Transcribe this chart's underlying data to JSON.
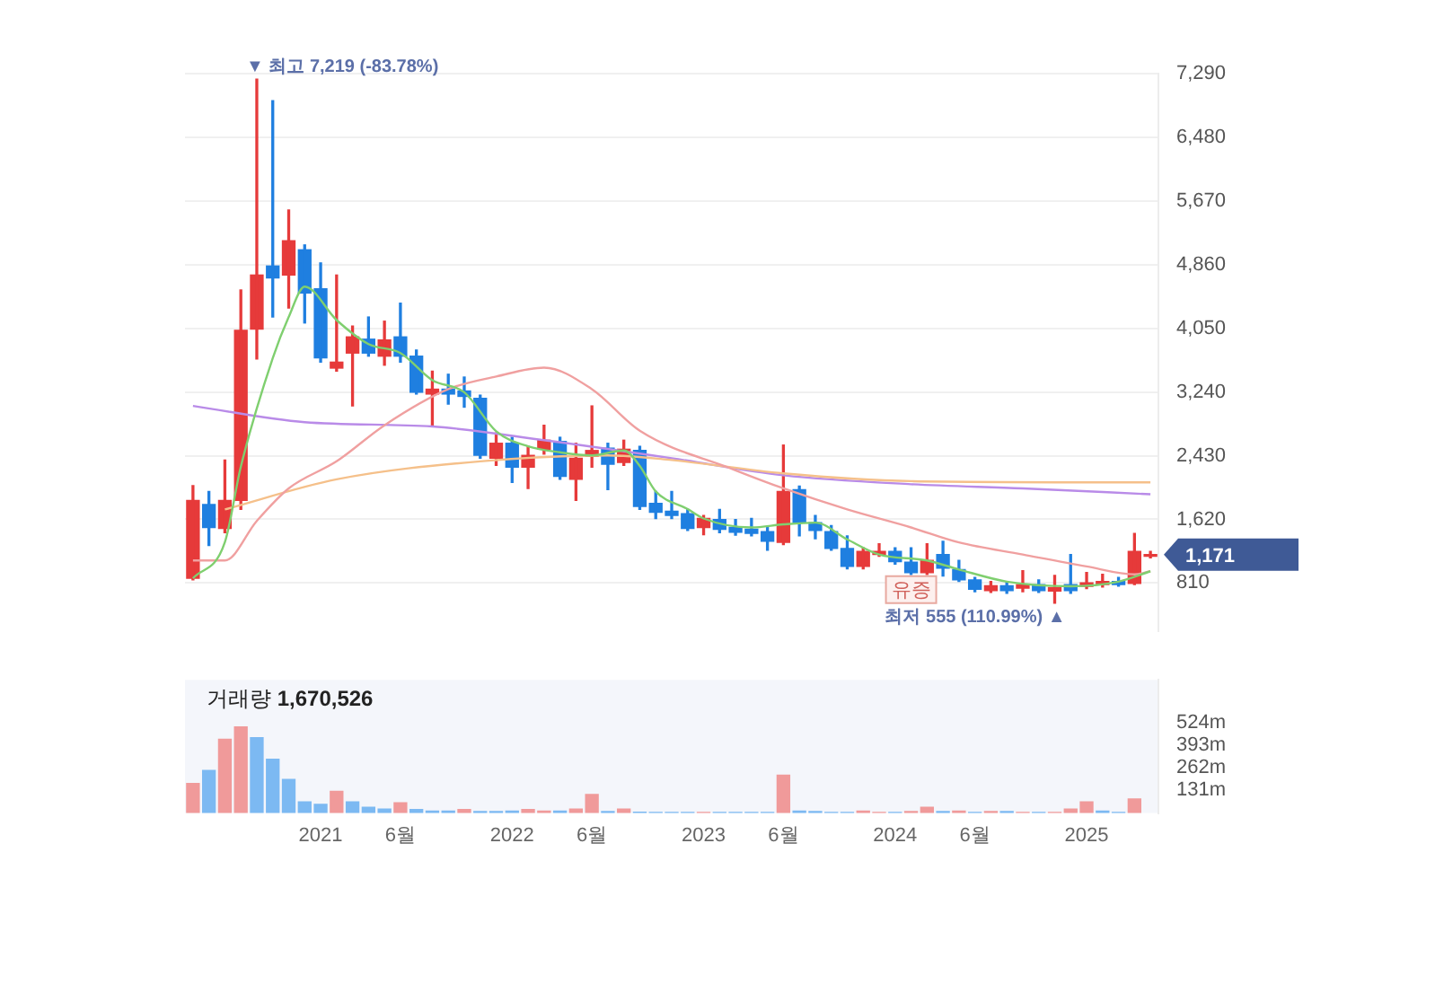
{
  "chart_data": [
    {
      "type": "candlestick",
      "x": [
        "2020-05",
        "2020-06",
        "2020-07",
        "2020-08",
        "2020-09",
        "2020-10",
        "2020-11",
        "2020-12",
        "2021-01",
        "2021-02",
        "2021-03",
        "2021-04",
        "2021-05",
        "2021-06",
        "2021-07",
        "2021-08",
        "2021-09",
        "2021-10",
        "2021-11",
        "2021-12",
        "2022-01",
        "2022-02",
        "2022-03",
        "2022-04",
        "2022-05",
        "2022-06",
        "2022-07",
        "2022-08",
        "2022-09",
        "2022-10",
        "2022-11",
        "2022-12",
        "2023-01",
        "2023-02",
        "2023-03",
        "2023-04",
        "2023-05",
        "2023-06",
        "2023-07",
        "2023-08",
        "2023-09",
        "2023-10",
        "2023-11",
        "2023-12",
        "2024-01",
        "2024-02",
        "2024-03",
        "2024-04",
        "2024-05",
        "2024-06",
        "2024-07",
        "2024-08",
        "2024-09",
        "2024-10",
        "2024-11",
        "2024-12",
        "2025-01",
        "2025-02",
        "2025-03",
        "2025-04",
        "2025-05"
      ],
      "ohlc": [
        [
          870,
          2050,
          850,
          1860
        ],
        [
          1808,
          1975,
          1287,
          1517
        ],
        [
          1503,
          2375,
          1450,
          1861
        ],
        [
          1861,
          4538,
          1746,
          4026
        ],
        [
          4040,
          7219,
          3659,
          4728
        ],
        [
          4843,
          6946,
          4194,
          4691
        ],
        [
          4728,
          5554,
          4308,
          5164
        ],
        [
          5049,
          5111,
          4118,
          4499
        ],
        [
          4554,
          4882,
          3620,
          3673
        ],
        [
          3544,
          4728,
          3505,
          3620
        ],
        [
          3735,
          4079,
          3063,
          3941
        ],
        [
          3912,
          4194,
          3696,
          3735
        ],
        [
          3696,
          4141,
          3581,
          3902
        ],
        [
          3941,
          4370,
          3620,
          3696
        ],
        [
          3696,
          3774,
          3214,
          3237
        ],
        [
          3214,
          3505,
          2801,
          3276
        ],
        [
          3276,
          3466,
          3086,
          3214
        ],
        [
          3253,
          3430,
          3047,
          3184
        ],
        [
          3161,
          3200,
          2397,
          2434
        ],
        [
          2397,
          2719,
          2306,
          2588
        ],
        [
          2588,
          2664,
          2090,
          2283
        ],
        [
          2283,
          2549,
          2014,
          2434
        ],
        [
          2512,
          2817,
          2450,
          2627
        ],
        [
          2611,
          2664,
          2129,
          2168
        ],
        [
          2129,
          2588,
          1861,
          2397
        ],
        [
          2420,
          3063,
          2283,
          2496
        ],
        [
          2526,
          2588,
          1998,
          2320
        ],
        [
          2343,
          2627,
          2306,
          2512
        ],
        [
          2496,
          2549,
          1746,
          1785
        ],
        [
          1824,
          1975,
          1631,
          1709
        ],
        [
          1723,
          1975,
          1631,
          1670
        ],
        [
          1693,
          1746,
          1480,
          1503
        ],
        [
          1517,
          1670,
          1425,
          1631
        ],
        [
          1617,
          1746,
          1450,
          1494
        ],
        [
          1517,
          1617,
          1420,
          1457
        ],
        [
          1494,
          1631,
          1410,
          1441
        ],
        [
          1464,
          1517,
          1227,
          1342
        ],
        [
          1326,
          2565,
          1300,
          1975
        ],
        [
          1998,
          2044,
          1410,
          1578
        ],
        [
          1578,
          1670,
          1372,
          1480
        ],
        [
          1464,
          1540,
          1227,
          1250
        ],
        [
          1250,
          1410,
          990,
          1021
        ],
        [
          1021,
          1257,
          990,
          1211
        ],
        [
          1172,
          1310,
          1150,
          1211
        ],
        [
          1211,
          1257,
          1050,
          1081
        ],
        [
          1074,
          1257,
          920,
          943
        ],
        [
          943,
          1310,
          920,
          1097
        ],
        [
          1172,
          1341,
          900,
          998
        ],
        [
          982,
          1097,
          830,
          851
        ],
        [
          851,
          880,
          700,
          730
        ],
        [
          714,
          830,
          690,
          776
        ],
        [
          776,
          830,
          680,
          714
        ],
        [
          746,
          968,
          700,
          790
        ],
        [
          790,
          850,
          690,
          714
        ],
        [
          707,
          906,
          555,
          753
        ],
        [
          790,
          1172,
          680,
          714
        ],
        [
          768,
          943,
          740,
          814
        ],
        [
          790,
          920,
          760,
          830
        ],
        [
          830,
          880,
          770,
          790
        ],
        [
          806,
          1441,
          790,
          1211
        ],
        [
          1150,
          1211,
          1130,
          1171
        ]
      ],
      "colors": [
        "#e63a3a",
        "#1f7fe0",
        "#e63a3a",
        "#e63a3a",
        "#e63a3a",
        "#1f7fe0",
        "#e63a3a",
        "#1f7fe0",
        "#1f7fe0",
        "#e63a3a",
        "#e63a3a",
        "#1f7fe0",
        "#e63a3a",
        "#1f7fe0",
        "#1f7fe0",
        "#e63a3a",
        "#1f7fe0",
        "#1f7fe0",
        "#1f7fe0",
        "#e63a3a",
        "#1f7fe0",
        "#e63a3a",
        "#e63a3a",
        "#1f7fe0",
        "#e63a3a",
        "#e63a3a",
        "#1f7fe0",
        "#e63a3a",
        "#1f7fe0",
        "#1f7fe0",
        "#1f7fe0",
        "#1f7fe0",
        "#e63a3a",
        "#1f7fe0",
        "#1f7fe0",
        "#1f7fe0",
        "#1f7fe0",
        "#e63a3a",
        "#1f7fe0",
        "#1f7fe0",
        "#1f7fe0",
        "#1f7fe0",
        "#e63a3a",
        "#e63a3a",
        "#1f7fe0",
        "#1f7fe0",
        "#e63a3a",
        "#1f7fe0",
        "#1f7fe0",
        "#1f7fe0",
        "#e63a3a",
        "#1f7fe0",
        "#e63a3a",
        "#1f7fe0",
        "#e63a3a",
        "#1f7fe0",
        "#e63a3a",
        "#e63a3a",
        "#1f7fe0",
        "#e63a3a",
        "#e63a3a"
      ],
      "series": [
        {
          "type": "line",
          "color": "#7fcf6f",
          "x": [
            "2020-05",
            "2020-07",
            "2020-08",
            "2020-10",
            "2020-11",
            "2020-12",
            "2021-02",
            "2021-04",
            "2021-06",
            "2021-08",
            "2021-10",
            "2021-12",
            "2022-02",
            "2022-04",
            "2022-06",
            "2022-08",
            "2022-09",
            "2022-10",
            "2022-12",
            "2023-01",
            "2023-04",
            "2023-06",
            "2023-08",
            "2023-10",
            "2023-12",
            "2024-03",
            "2024-05",
            "2024-08",
            "2024-12",
            "2025-03",
            "2025-05"
          ],
          "values": [
            870,
            1330,
            2290,
            3670,
            4194,
            4580,
            4155,
            3850,
            3735,
            3390,
            3237,
            2741,
            2549,
            2473,
            2434,
            2496,
            2300,
            1975,
            1750,
            1631,
            1517,
            1556,
            1578,
            1365,
            1172,
            1097,
            982,
            828,
            769,
            828,
            960
          ]
        },
        {
          "type": "line",
          "color": "#f0a0a0",
          "x": [
            "2020-05",
            "2020-07",
            "2020-09",
            "2020-11",
            "2021-02",
            "2021-05",
            "2021-09",
            "2021-12",
            "2022-03",
            "2022-06",
            "2022-09",
            "2023-03",
            "2023-06",
            "2023-10",
            "2024-02",
            "2024-05",
            "2024-09",
            "2025-01",
            "2025-04",
            "2025-05"
          ],
          "values": [
            1097,
            1097,
            1600,
            2014,
            2358,
            2817,
            3276,
            3437,
            3550,
            3276,
            2748,
            2244,
            2014,
            1746,
            1517,
            1326,
            1172,
            1021,
            920,
            960
          ]
        },
        {
          "type": "line",
          "color": "#f5c08a",
          "x": [
            "2020-07",
            "2021-02",
            "2021-11",
            "2022-07",
            "2022-11",
            "2023-06",
            "2024-02",
            "2025-05"
          ],
          "values": [
            1746,
            2129,
            2358,
            2434,
            2375,
            2205,
            2106,
            2090
          ]
        },
        {
          "type": "line",
          "color": "#b98be8",
          "x": [
            "2020-05",
            "2020-12",
            "2021-08",
            "2022-03",
            "2022-11",
            "2023-06",
            "2024-02",
            "2024-09",
            "2025-05"
          ],
          "values": [
            3063,
            2856,
            2801,
            2627,
            2397,
            2180,
            2067,
            2014,
            1939
          ]
        }
      ],
      "xlim": [
        "2020-04-16",
        "2025-05-16"
      ],
      "ylim": [
        200,
        7290
      ],
      "yticks": [
        {
          "value": 810,
          "label": "810"
        },
        {
          "value": 1620,
          "label": "1,620"
        },
        {
          "value": 2430,
          "label": "2,430"
        },
        {
          "value": 3240,
          "label": "3,240"
        },
        {
          "value": 4050,
          "label": "4,050"
        },
        {
          "value": 4860,
          "label": "4,860"
        },
        {
          "value": 5670,
          "label": "5,670"
        },
        {
          "value": 6480,
          "label": "6,480"
        },
        {
          "value": 7290,
          "label": "7,290"
        }
      ],
      "tick_labels": "y",
      "grid": "y",
      "legend": false,
      "annotations": [
        {
          "text": "▼ 최고 7,219 (-83.78%)",
          "x": "2020-09",
          "y": 7219
        },
        {
          "text": "최저 555 (110.99%) ▲",
          "x": "2024-11",
          "y": 555
        },
        {
          "text": "유증",
          "x": "2024-02",
          "y": 943
        },
        {
          "text": "1,171",
          "x": "2025-05",
          "y": 1171
        }
      ]
    },
    {
      "type": "bar",
      "x": [
        "2020-05",
        "2020-06",
        "2020-07",
        "2020-08",
        "2020-09",
        "2020-10",
        "2020-11",
        "2020-12",
        "2021-01",
        "2021-02",
        "2021-03",
        "2021-04",
        "2021-05",
        "2021-06",
        "2021-07",
        "2021-08",
        "2021-09",
        "2021-10",
        "2021-11",
        "2021-12",
        "2022-01",
        "2022-02",
        "2022-03",
        "2022-04",
        "2022-05",
        "2022-06",
        "2022-07",
        "2022-08",
        "2022-09",
        "2022-10",
        "2022-11",
        "2022-12",
        "2023-01",
        "2023-02",
        "2023-03",
        "2023-04",
        "2023-05",
        "2023-06",
        "2023-07",
        "2023-08",
        "2023-09",
        "2023-10",
        "2023-11",
        "2023-12",
        "2024-01",
        "2024-02",
        "2024-03",
        "2024-04",
        "2024-05",
        "2024-06",
        "2024-07",
        "2024-08",
        "2024-09",
        "2024-10",
        "2024-11",
        "2024-12",
        "2025-01",
        "2025-02",
        "2025-03",
        "2025-04"
      ],
      "values": [
        171,
        246,
        427,
        498,
        436,
        311,
        194,
        65,
        50,
        125,
        65,
        33,
        23,
        60,
        20,
        12,
        12,
        20,
        9,
        9,
        12,
        20,
        12,
        12,
        23,
        108,
        9,
        23,
        5,
        4,
        3,
        3,
        4,
        4,
        3,
        3,
        4,
        219,
        12,
        9,
        4,
        3,
        12,
        4,
        4,
        9,
        33,
        9,
        12,
        4,
        9,
        9,
        4,
        4,
        4,
        23,
        65,
        12,
        4,
        82
      ],
      "colors": [
        "#f09a9a",
        "#7cb9f2",
        "#f09a9a",
        "#f09a9a",
        "#7cb9f2",
        "#7cb9f2",
        "#7cb9f2",
        "#7cb9f2",
        "#7cb9f2",
        "#f09a9a",
        "#7cb9f2",
        "#7cb9f2",
        "#7cb9f2",
        "#f09a9a",
        "#7cb9f2",
        "#7cb9f2",
        "#7cb9f2",
        "#f09a9a",
        "#7cb9f2",
        "#7cb9f2",
        "#7cb9f2",
        "#f09a9a",
        "#f09a9a",
        "#7cb9f2",
        "#f09a9a",
        "#f09a9a",
        "#7cb9f2",
        "#f09a9a",
        "#7cb9f2",
        "#7cb9f2",
        "#7cb9f2",
        "#7cb9f2",
        "#f09a9a",
        "#7cb9f2",
        "#7cb9f2",
        "#7cb9f2",
        "#7cb9f2",
        "#f09a9a",
        "#7cb9f2",
        "#7cb9f2",
        "#7cb9f2",
        "#7cb9f2",
        "#f09a9a",
        "#f09a9a",
        "#7cb9f2",
        "#f09a9a",
        "#f09a9a",
        "#7cb9f2",
        "#f09a9a",
        "#7cb9f2",
        "#f09a9a",
        "#7cb9f2",
        "#f09a9a",
        "#7cb9f2",
        "#f09a9a",
        "#f09a9a",
        "#f09a9a",
        "#7cb9f2",
        "#7cb9f2",
        "#f09a9a"
      ],
      "xlim": [
        "2020-04-16",
        "2025-05-16"
      ],
      "xticks": [
        {
          "value": "2021-01",
          "label": "2021"
        },
        {
          "value": "2021-06",
          "label": "6월"
        },
        {
          "value": "2022-01",
          "label": "2022"
        },
        {
          "value": "2022-06",
          "label": "6월"
        },
        {
          "value": "2023-01",
          "label": "2023"
        },
        {
          "value": "2023-06",
          "label": "6월"
        },
        {
          "value": "2024-01",
          "label": "2024"
        },
        {
          "value": "2024-06",
          "label": "6월"
        },
        {
          "value": "2025-01",
          "label": "2025"
        }
      ],
      "ylim": [
        0,
        770
      ],
      "yticks": [
        {
          "value": 131,
          "label": "131m"
        },
        {
          "value": 262,
          "label": "262m"
        },
        {
          "value": 393,
          "label": "393m"
        },
        {
          "value": 524,
          "label": "524m"
        }
      ],
      "legend": false,
      "annotations": [
        "거래량 1,670,526"
      ]
    }
  ]
}
